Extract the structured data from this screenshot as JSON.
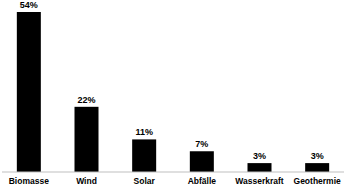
{
  "chart_data": {
    "type": "bar",
    "categories": [
      "Biomasse",
      "Wind",
      "Solar",
      "Abfälle",
      "Wasserkraft",
      "Geothermie"
    ],
    "values": [
      54,
      22,
      11,
      7,
      3,
      3
    ],
    "value_labels": [
      "54%",
      "22%",
      "11%",
      "7%",
      "3%",
      "3%"
    ],
    "color": "#000000",
    "ylim": [
      0,
      54
    ],
    "data_labels": true,
    "grid": false,
    "tick_labels": "x"
  }
}
